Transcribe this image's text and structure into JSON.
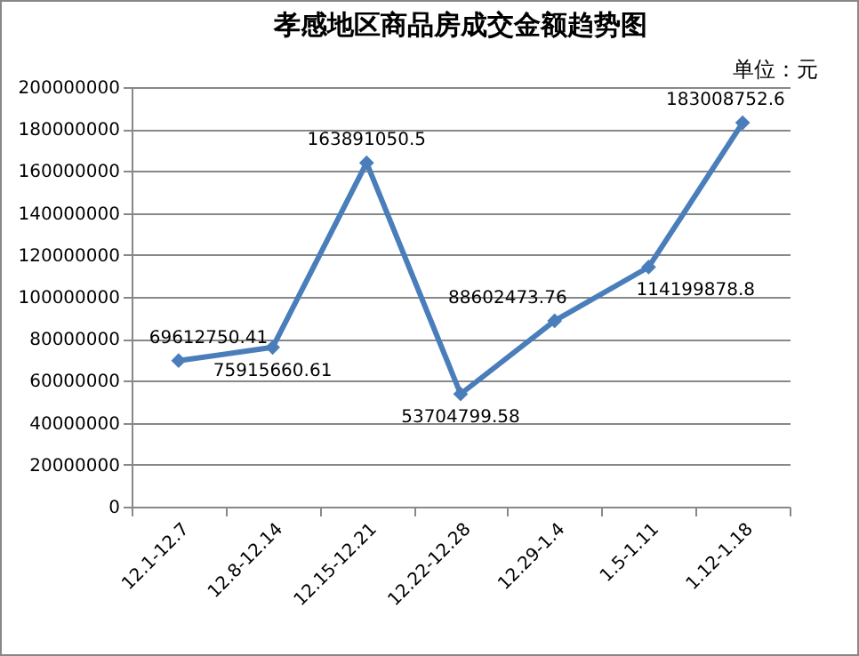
{
  "chart_data": {
    "type": "line",
    "title": "孝感地区商品房成交金额趋势图",
    "annotations": [
      "单位：元"
    ],
    "categories": [
      "12.1-12.7",
      "12.8-12.14",
      "12.15-12.21",
      "12.22-12.28",
      "12.29-1.4",
      "1.5-1.11",
      "1.12-1.18"
    ],
    "series": [
      {
        "color": "#4a7ebb",
        "values": [
          69612750.41,
          75915660.61,
          163891050.5,
          53704799.58,
          88602473.76,
          114199878.8,
          183008752.6
        ]
      }
    ],
    "ylim": [
      0,
      200000000
    ],
    "yticks": [
      0,
      20000000,
      40000000,
      60000000,
      80000000,
      100000000,
      120000000,
      140000000,
      160000000,
      180000000,
      200000000
    ],
    "grid": "y",
    "marker": "diamond",
    "data_labels": true
  }
}
